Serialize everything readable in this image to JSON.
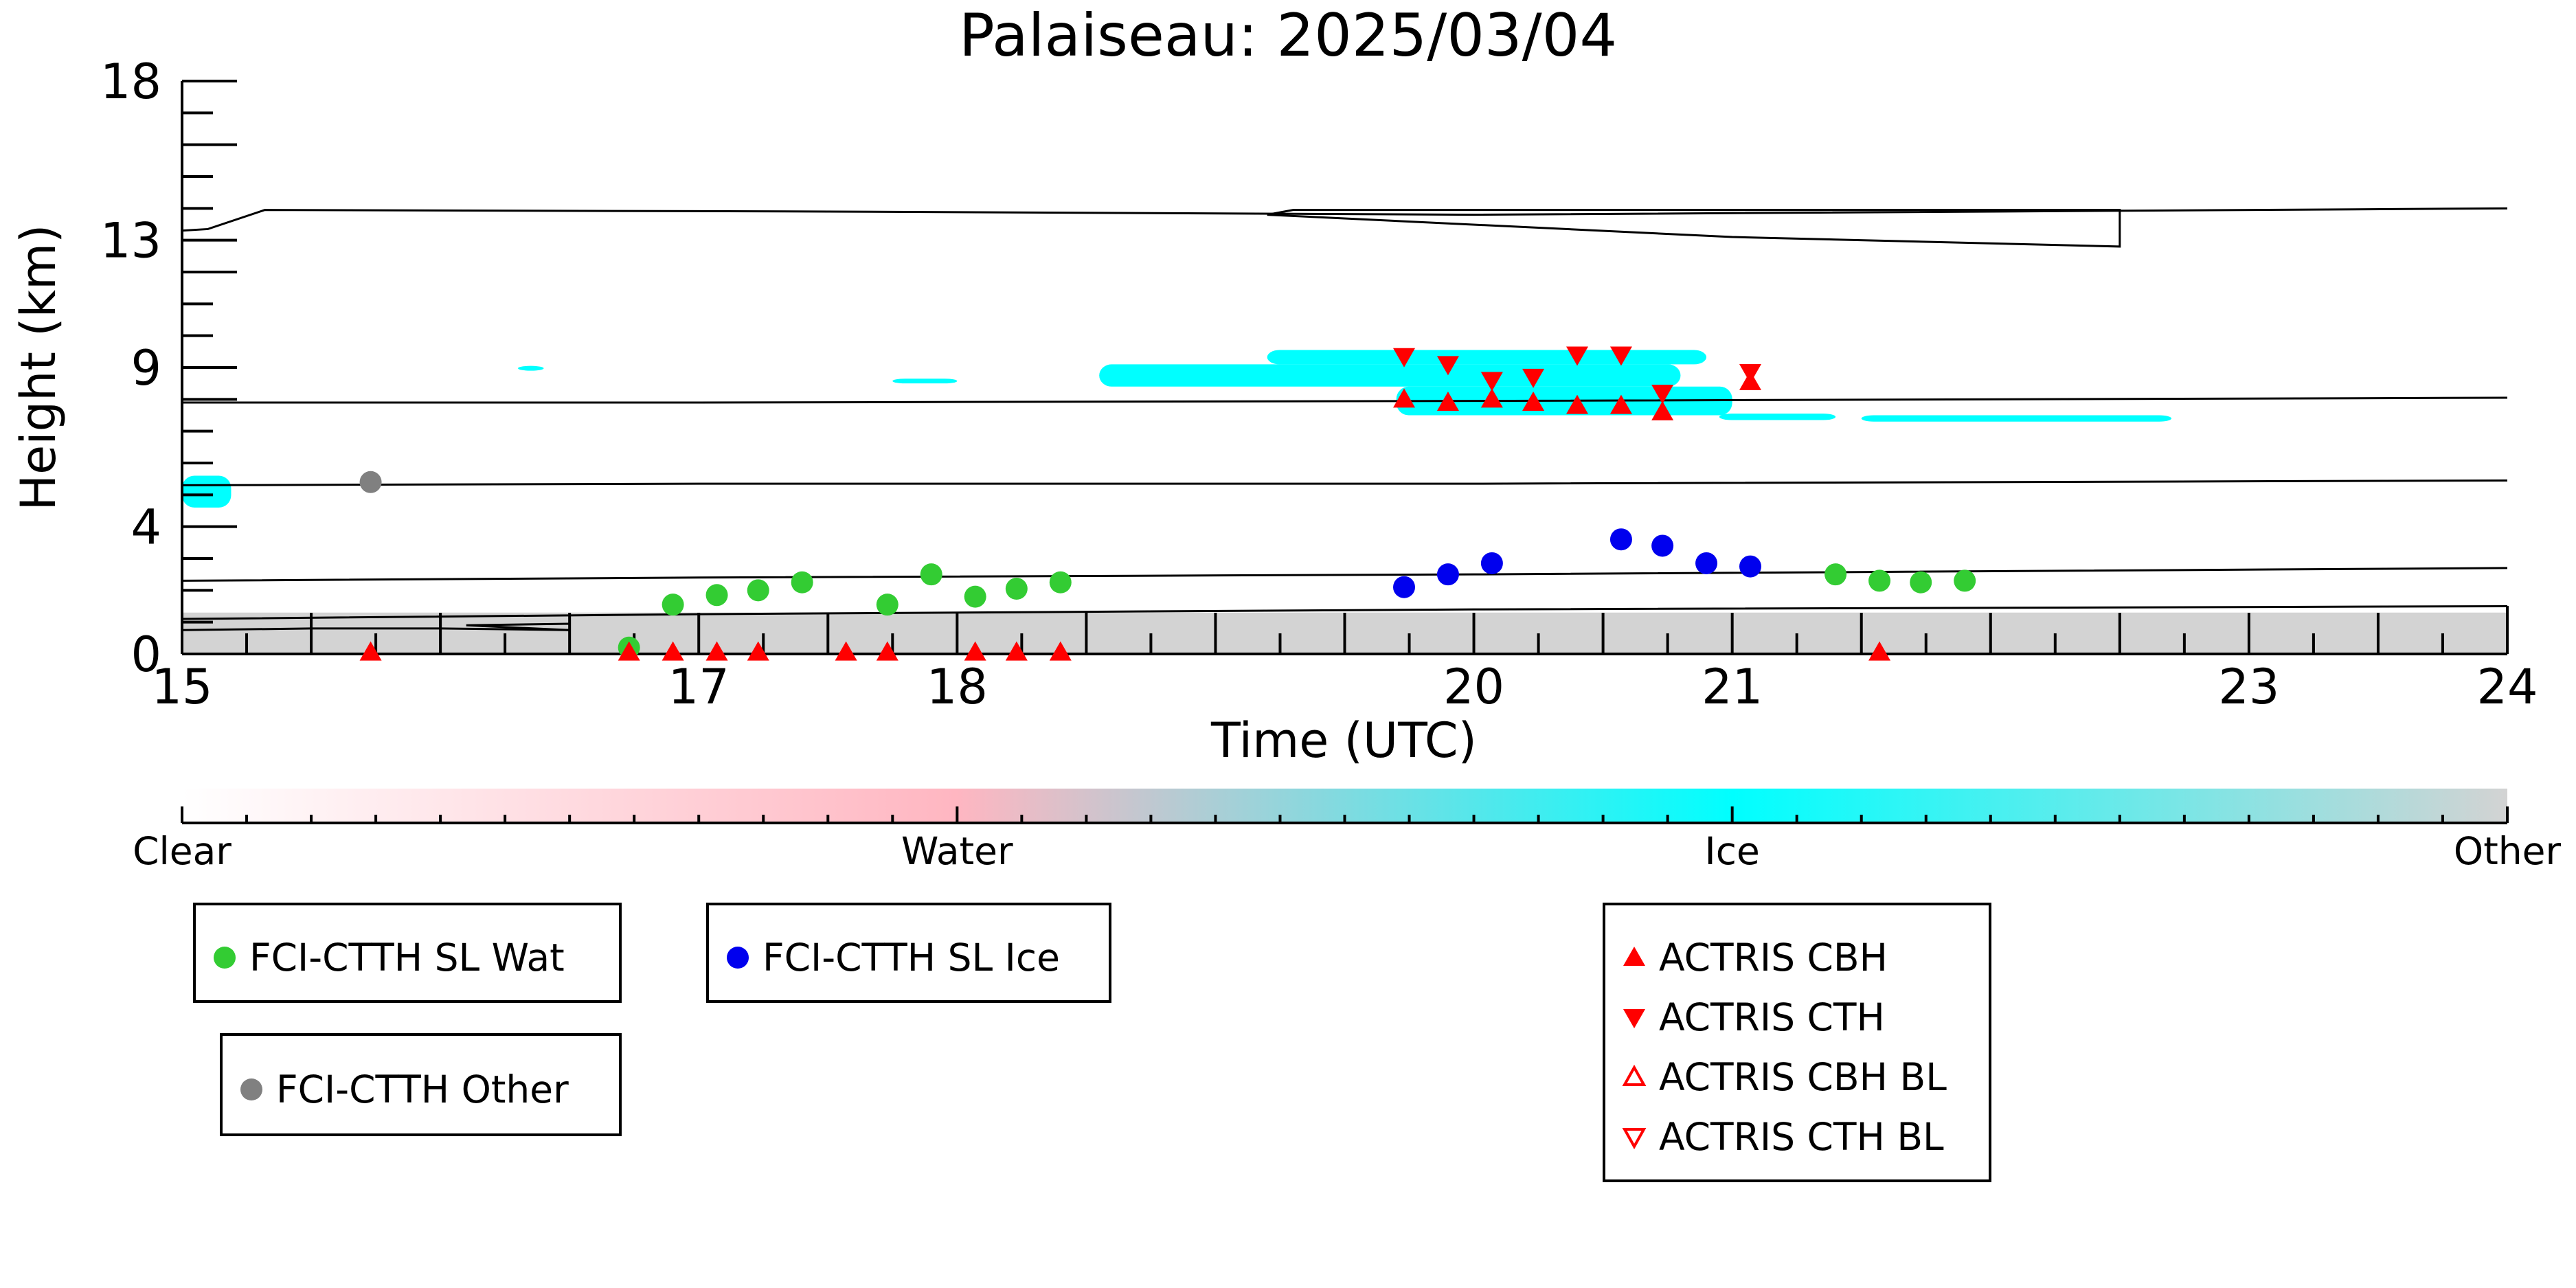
{
  "chart_data": {
    "type": "scatter",
    "title": "Palaiseau: 2025/03/04",
    "xlabel": "Time (UTC)",
    "ylabel": "Height (km)",
    "xlim": [
      15,
      24
    ],
    "ylim": [
      0,
      18
    ],
    "x_tick_labels": [
      "15",
      "17",
      "18",
      "20",
      "21",
      "23",
      "24"
    ],
    "y_tick_labels": [
      "0",
      "4",
      "9",
      "13",
      "18"
    ],
    "colors": {
      "wat": "#33cc33",
      "ice": "#0000ee",
      "other": "#808080",
      "actris": "#ff0000",
      "ice_cloud": "#00ffff",
      "clear_gray": "#d3d3d3"
    },
    "series": [
      {
        "name": "FCI-CTTH SL Wat",
        "color": "#33cc33",
        "marker": "circle",
        "x": [
          16.73,
          16.9,
          17.07,
          17.23,
          17.4,
          17.73,
          17.9,
          18.07,
          18.23,
          18.4,
          21.4,
          21.57,
          21.73,
          21.9
        ],
        "y": [
          0.2,
          1.55,
          1.85,
          2.0,
          2.25,
          1.55,
          2.5,
          1.8,
          2.05,
          2.25,
          2.5,
          2.3,
          2.25,
          2.3
        ]
      },
      {
        "name": "FCI-CTTH SL Ice",
        "color": "#0000ee",
        "marker": "circle",
        "x": [
          19.73,
          19.9,
          20.07,
          20.57,
          20.73,
          20.9,
          21.07
        ],
        "y": [
          2.1,
          2.5,
          2.85,
          3.6,
          3.4,
          2.85,
          2.75
        ]
      },
      {
        "name": "FCI-CTTH Other",
        "color": "#808080",
        "marker": "circle",
        "x": [
          15.73
        ],
        "y": [
          5.4
        ]
      },
      {
        "name": "ACTRIS CBH",
        "color": "#ff0000",
        "marker": "triangle-up",
        "x": [
          19.73,
          19.9,
          20.07,
          20.23,
          20.4,
          20.57,
          20.73,
          21.07
        ],
        "y": [
          8.0,
          7.9,
          8.0,
          7.9,
          7.8,
          7.8,
          7.6,
          8.55
        ]
      },
      {
        "name": "ACTRIS CTH",
        "color": "#ff0000",
        "marker": "triangle-down",
        "x": [
          19.73,
          19.9,
          20.07,
          20.23,
          20.4,
          20.57,
          20.73,
          21.07
        ],
        "y": [
          9.35,
          9.1,
          8.6,
          8.7,
          9.4,
          9.4,
          8.2,
          8.85
        ]
      },
      {
        "name": "ACTRIS CBH BL",
        "color": "#ff0000",
        "marker": "triangle-up-open",
        "x": [],
        "y": []
      },
      {
        "name": "ACTRIS CTH BL",
        "color": "#ff0000",
        "marker": "triangle-down-open",
        "x": [],
        "y": []
      },
      {
        "name": "ACTRIS base markers",
        "color": "#ff0000",
        "marker": "triangle-up",
        "legend": false,
        "x": [
          15.73,
          16.73,
          16.9,
          17.07,
          17.23,
          17.57,
          17.73,
          18.07,
          18.23,
          18.4,
          21.57
        ],
        "y": [
          0.05,
          0.05,
          0.05,
          0.05,
          0.05,
          0.05,
          0.05,
          0.05,
          0.05,
          0.05,
          0.05
        ]
      }
    ],
    "contours": [
      {
        "x": [
          15.0,
          15.1,
          15.32,
          17.5,
          20.0,
          24.0
        ],
        "y": [
          13.3,
          13.35,
          13.95,
          13.9,
          13.8,
          14.0
        ]
      },
      {
        "x": [
          19.2,
          19.3,
          22.5,
          22.5,
          21.0,
          19.2
        ],
        "y": [
          13.8,
          13.95,
          13.95,
          12.8,
          13.1,
          13.8
        ]
      },
      {
        "x": [
          15.0,
          17.0,
          20.0,
          24.0
        ],
        "y": [
          7.9,
          7.9,
          7.95,
          8.05
        ]
      },
      {
        "x": [
          15.0,
          17.0,
          20.0,
          24.0
        ],
        "y": [
          5.3,
          5.35,
          5.35,
          5.45
        ]
      },
      {
        "x": [
          15.0,
          17.0,
          20.0,
          24.0
        ],
        "y": [
          2.3,
          2.4,
          2.5,
          2.7
        ]
      },
      {
        "x": [
          15.0,
          17.0,
          20.0,
          24.0
        ],
        "y": [
          1.1,
          1.25,
          1.4,
          1.5
        ]
      },
      {
        "x": [
          15.0,
          15.5,
          16.0,
          16.5
        ],
        "y": [
          0.75,
          0.8,
          0.8,
          0.75
        ]
      },
      {
        "x": [
          16.1,
          16.5,
          16.5,
          16.1
        ],
        "y": [
          0.9,
          0.95,
          0.75,
          0.9
        ]
      }
    ],
    "ice_cloud_regions": [
      {
        "x0": 18.55,
        "x1": 20.8,
        "y0": 8.4,
        "y1": 9.1
      },
      {
        "x0": 19.2,
        "x1": 20.9,
        "y0": 9.1,
        "y1": 9.55
      },
      {
        "x0": 19.7,
        "x1": 21.0,
        "y0": 7.5,
        "y1": 8.4
      },
      {
        "x0": 20.95,
        "x1": 21.4,
        "y0": 7.35,
        "y1": 7.55
      },
      {
        "x0": 21.5,
        "x1": 22.7,
        "y0": 7.3,
        "y1": 7.5
      },
      {
        "x0": 17.75,
        "x1": 18.0,
        "y0": 8.5,
        "y1": 8.65
      },
      {
        "x0": 16.3,
        "x1": 16.4,
        "y0": 8.9,
        "y1": 9.05
      },
      {
        "x0": 15.0,
        "x1": 15.19,
        "y0": 4.6,
        "y1": 5.6
      }
    ],
    "clear_band": {
      "x0": 15.0,
      "x1": 24.0,
      "y0": 0.0,
      "y1": 1.3
    },
    "colorbar": {
      "labels": [
        "Clear",
        "Water",
        "Ice",
        "Other"
      ],
      "stops": [
        "#ffffff",
        "#ffb6c1",
        "#00ffff",
        "#d3d3d3"
      ]
    },
    "legend": {
      "box1": [
        "FCI-CTTH SL Wat"
      ],
      "box2": [
        "FCI-CTTH SL Ice"
      ],
      "box3": [
        "FCI-CTTH Other"
      ],
      "box4": [
        "ACTRIS CBH",
        "ACTRIS CTH",
        "ACTRIS CBH BL",
        "ACTRIS CTH BL"
      ]
    }
  }
}
